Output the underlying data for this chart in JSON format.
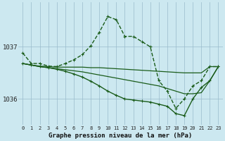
{
  "title": "Graphe pression niveau de la mer (hPa)",
  "background_color": "#cce8f0",
  "grid_color": "#99bbcc",
  "line_color": "#1a5c1a",
  "xlim": [
    -0.5,
    23.5
  ],
  "ylim": [
    1035.5,
    1037.85
  ],
  "yticks": [
    1036,
    1037
  ],
  "xticks": [
    0,
    1,
    2,
    3,
    4,
    5,
    6,
    7,
    8,
    9,
    10,
    11,
    12,
    13,
    14,
    15,
    16,
    17,
    18,
    19,
    20,
    21,
    22,
    23
  ],
  "series": [
    {
      "x": [
        0,
        1,
        2,
        3,
        4,
        5,
        6,
        7,
        8,
        9,
        10,
        11,
        12,
        13,
        14,
        15,
        16,
        17,
        18,
        19,
        20,
        21,
        22,
        23
      ],
      "y": [
        1036.88,
        1036.68,
        1036.68,
        1036.63,
        1036.62,
        1036.68,
        1036.75,
        1036.85,
        1037.02,
        1037.28,
        1037.58,
        1037.52,
        1037.2,
        1037.2,
        1037.1,
        1037.0,
        1036.35,
        1036.15,
        1035.82,
        1036.0,
        1036.25,
        1036.35,
        1036.62,
        1036.62
      ],
      "marker": "+",
      "markersize": 3.5,
      "linewidth": 1.0,
      "linestyle": "--"
    },
    {
      "x": [
        0,
        1,
        2,
        3,
        4,
        5,
        6,
        7,
        8,
        9,
        10,
        11,
        12,
        13,
        14,
        15,
        16,
        17,
        18,
        19,
        20,
        21,
        22,
        23
      ],
      "y": [
        1036.68,
        1036.65,
        1036.63,
        1036.62,
        1036.61,
        1036.61,
        1036.61,
        1036.61,
        1036.6,
        1036.6,
        1036.59,
        1036.58,
        1036.57,
        1036.56,
        1036.55,
        1036.54,
        1036.53,
        1036.52,
        1036.51,
        1036.5,
        1036.5,
        1036.5,
        1036.62,
        1036.62
      ],
      "marker": null,
      "markersize": 0,
      "linewidth": 0.9,
      "linestyle": "-"
    },
    {
      "x": [
        0,
        1,
        2,
        3,
        4,
        5,
        6,
        7,
        8,
        9,
        10,
        11,
        12,
        13,
        14,
        15,
        16,
        17,
        18,
        19,
        20,
        21,
        22,
        23
      ],
      "y": [
        1036.68,
        1036.65,
        1036.62,
        1036.6,
        1036.58,
        1036.56,
        1036.54,
        1036.52,
        1036.49,
        1036.46,
        1036.43,
        1036.4,
        1036.37,
        1036.34,
        1036.31,
        1036.28,
        1036.25,
        1036.2,
        1036.15,
        1036.1,
        1036.1,
        1036.12,
        1036.35,
        1036.62
      ],
      "marker": null,
      "markersize": 0,
      "linewidth": 0.9,
      "linestyle": "-"
    },
    {
      "x": [
        0,
        1,
        2,
        3,
        4,
        5,
        6,
        7,
        8,
        9,
        10,
        11,
        12,
        13,
        14,
        15,
        16,
        17,
        18,
        19,
        20,
        21,
        22,
        23
      ],
      "y": [
        1036.68,
        1036.65,
        1036.62,
        1036.6,
        1036.57,
        1036.53,
        1036.48,
        1036.42,
        1036.34,
        1036.25,
        1036.15,
        1036.07,
        1036.0,
        1035.98,
        1035.96,
        1035.94,
        1035.9,
        1035.86,
        1035.72,
        1035.68,
        1036.0,
        1036.22,
        1036.35,
        1036.62
      ],
      "marker": "+",
      "markersize": 3.5,
      "linewidth": 1.0,
      "linestyle": "-"
    }
  ]
}
